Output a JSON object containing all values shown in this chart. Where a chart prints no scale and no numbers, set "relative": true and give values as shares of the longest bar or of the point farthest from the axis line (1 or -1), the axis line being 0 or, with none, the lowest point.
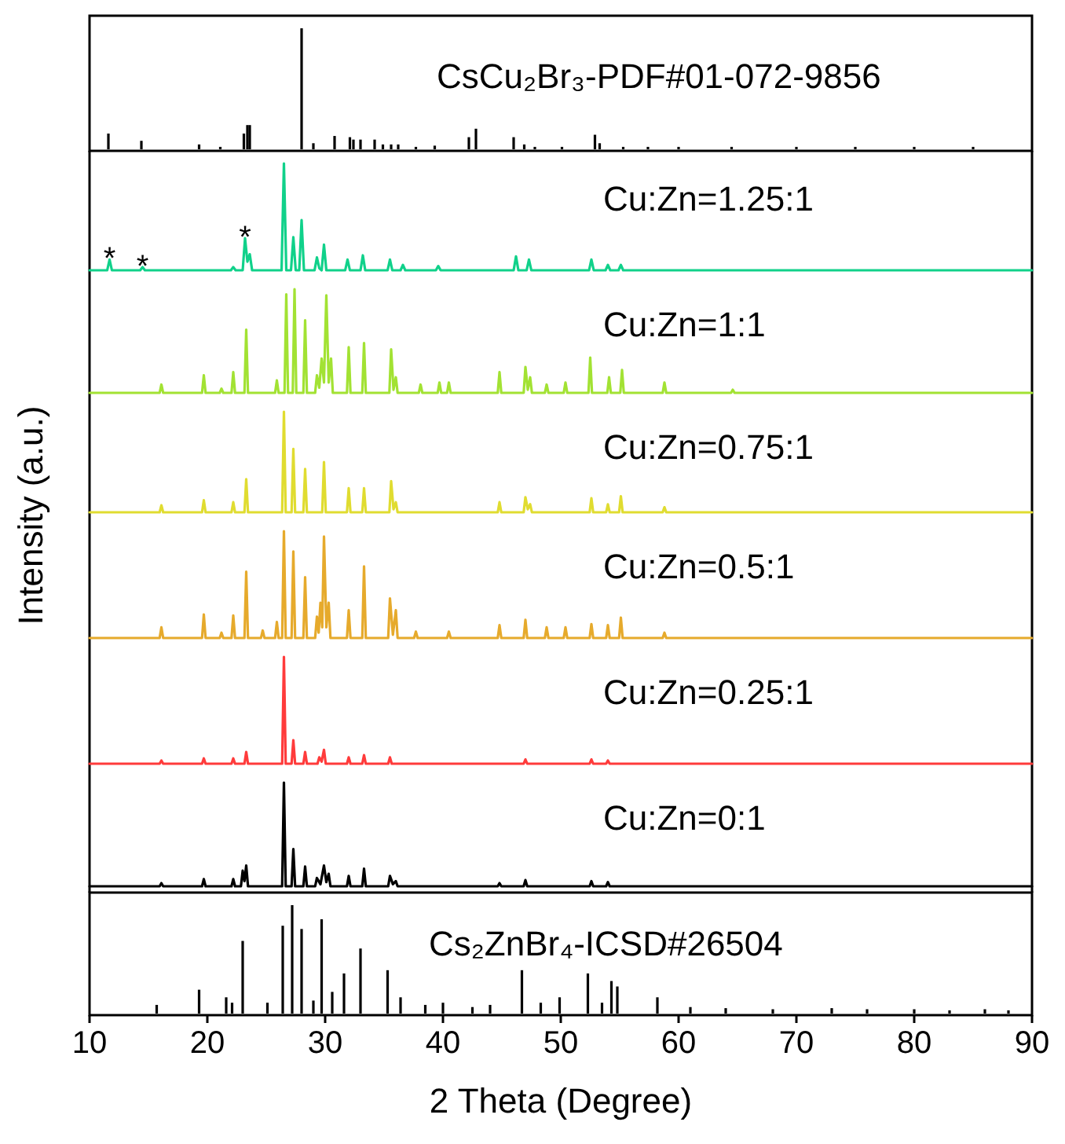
{
  "chart_data": [
    {
      "type": "bar",
      "relative": true,
      "xlim": [
        10,
        90
      ],
      "tick_labels": false,
      "series": [
        {
          "name": "CsCu₂Br₃-PDF#01-072-9856",
          "color": "#000000",
          "x": [
            11.6,
            14.4,
            19.3,
            21.1,
            23.1,
            23.4,
            23.6,
            28.0,
            29.0,
            30.8,
            32.1,
            32.4,
            33.0,
            34.2,
            34.9,
            35.6,
            36.2,
            37.7,
            39.3,
            42.2,
            42.8,
            46.0,
            46.9,
            47.8,
            50.1,
            52.9,
            53.3,
            55.3,
            57.4,
            60.0,
            64.5,
            70.0,
            75.0,
            80.0,
            85.0
          ],
          "values": [
            0.13,
            0.07,
            0.04,
            0.02,
            0.13,
            0.2,
            0.2,
            1,
            0.05,
            0.11,
            0.1,
            0.08,
            0.08,
            0.08,
            0.04,
            0.04,
            0.04,
            0.02,
            0.03,
            0.1,
            0.17,
            0.1,
            0.04,
            0.02,
            0.02,
            0.12,
            0.05,
            0.02,
            0.02,
            0.02,
            0.02,
            0.02,
            0.02,
            0.02,
            0.02
          ]
        }
      ]
    },
    {
      "type": "line",
      "relative": true,
      "xlim": [
        10,
        90
      ],
      "tick_labels": false,
      "annotations": [
        {
          "text": "*",
          "x": 11.7,
          "y": 0.1
        },
        {
          "text": "*",
          "x": 14.5,
          "y": 0.03
        },
        {
          "text": "*",
          "x": 23.2,
          "y": 0.3
        }
      ],
      "series": [
        {
          "name": "Cu:Zn=1.25:1",
          "color": "#10d18a",
          "x": [
            10,
            11.5,
            11.7,
            11.9,
            14.3,
            14.5,
            14.7,
            22.0,
            22.2,
            22.4,
            23.0,
            23.2,
            23.4,
            23.6,
            23.8,
            26.3,
            26.5,
            26.7,
            27.1,
            27.3,
            27.5,
            27.8,
            28.0,
            28.2,
            29.1,
            29.3,
            29.5,
            29.7,
            29.9,
            30.1,
            31.7,
            31.9,
            32.1,
            33.0,
            33.2,
            33.4,
            35.3,
            35.5,
            35.7,
            36.4,
            36.6,
            36.8,
            39.4,
            39.6,
            39.8,
            46.0,
            46.2,
            46.4,
            47.1,
            47.3,
            47.5,
            52.4,
            52.6,
            52.8,
            53.8,
            54.0,
            54.2,
            54.9,
            55.1,
            55.3,
            90
          ],
          "values": [
            0,
            0,
            0.1,
            0,
            0,
            0.03,
            0,
            0,
            0.03,
            0,
            0,
            0.3,
            0.08,
            0.15,
            0,
            0,
            1,
            0,
            0,
            0.31,
            0,
            0,
            0.47,
            0,
            0,
            0.12,
            0.02,
            0,
            0.24,
            0,
            0,
            0.1,
            0,
            0,
            0.14,
            0,
            0,
            0.1,
            0,
            0,
            0.05,
            0,
            0,
            0.04,
            0,
            0,
            0.13,
            0,
            0,
            0.1,
            0,
            0,
            0.1,
            0,
            0,
            0.05,
            0,
            0,
            0.05,
            0,
            0
          ]
        }
      ]
    },
    {
      "type": "line",
      "relative": true,
      "xlim": [
        10,
        90
      ],
      "tick_labels": false,
      "series": [
        {
          "name": "Cu:Zn=1:1",
          "color": "#a2e233",
          "x": [
            10,
            15.95,
            16.1,
            16.25,
            19.55,
            19.7,
            19.85,
            21.05,
            21.2,
            21.35,
            22.05,
            22.2,
            22.35,
            23.15,
            23.3,
            23.45,
            25.75,
            25.9,
            26.05,
            26.55,
            26.7,
            26.85,
            27.25,
            27.4,
            27.55,
            28.15,
            28.3,
            28.45,
            29.15,
            29.3,
            29.5,
            29.7,
            29.9,
            30.1,
            30.3,
            30.5,
            30.65,
            31.85,
            32.0,
            32.15,
            33.15,
            33.3,
            33.45,
            35.45,
            35.6,
            35.8,
            36.0,
            36.15,
            37.95,
            38.1,
            38.25,
            39.55,
            39.7,
            39.85,
            40.35,
            40.5,
            40.65,
            44.65,
            44.8,
            44.95,
            46.85,
            47.0,
            47.2,
            47.4,
            47.55,
            48.65,
            48.8,
            48.95,
            50.25,
            50.4,
            50.55,
            52.35,
            52.5,
            52.65,
            53.95,
            54.1,
            54.25,
            55.05,
            55.2,
            55.35,
            58.65,
            58.8,
            58.95,
            64.45,
            64.6,
            64.75,
            90
          ],
          "values": [
            0,
            0,
            0.08,
            0,
            0,
            0.17,
            0,
            0,
            0.04,
            0,
            0,
            0.2,
            0,
            0,
            0.61,
            0,
            0,
            0.12,
            0,
            0,
            0.95,
            0,
            0,
            1,
            0,
            0,
            0.7,
            0,
            0,
            0.17,
            0.05,
            0.33,
            0.1,
            0.94,
            0.1,
            0.33,
            0,
            0,
            0.44,
            0,
            0,
            0.48,
            0,
            0,
            0.42,
            0.03,
            0.15,
            0,
            0,
            0.08,
            0,
            0,
            0.1,
            0,
            0,
            0.1,
            0,
            0,
            0.2,
            0,
            0,
            0.25,
            0.03,
            0.15,
            0,
            0,
            0.08,
            0,
            0,
            0.1,
            0,
            0,
            0.34,
            0,
            0,
            0.15,
            0,
            0,
            0.22,
            0,
            0,
            0.1,
            0,
            0,
            0.03,
            0,
            0
          ]
        }
      ]
    },
    {
      "type": "line",
      "relative": true,
      "xlim": [
        10,
        90
      ],
      "tick_labels": false,
      "series": [
        {
          "name": "Cu:Zn=0.75:1",
          "color": "#e0dc30",
          "x": [
            10,
            15.95,
            16.1,
            16.25,
            19.55,
            19.7,
            19.85,
            22.05,
            22.2,
            22.35,
            23.15,
            23.3,
            23.45,
            26.35,
            26.5,
            26.65,
            27.15,
            27.3,
            27.45,
            28.15,
            28.3,
            28.45,
            29.75,
            29.9,
            30.05,
            31.85,
            32.0,
            32.15,
            33.15,
            33.3,
            33.45,
            35.45,
            35.6,
            35.8,
            36.0,
            36.15,
            44.65,
            44.8,
            44.95,
            46.85,
            47.0,
            47.2,
            47.4,
            47.55,
            52.45,
            52.6,
            52.75,
            53.85,
            54.0,
            54.15,
            54.95,
            55.1,
            55.25,
            58.65,
            58.8,
            58.95,
            90
          ],
          "values": [
            0,
            0,
            0.07,
            0,
            0,
            0.12,
            0,
            0,
            0.1,
            0,
            0,
            0.33,
            0,
            0,
            1,
            0,
            0,
            0.63,
            0,
            0,
            0.43,
            0,
            0,
            0.5,
            0,
            0,
            0.24,
            0,
            0,
            0.24,
            0,
            0,
            0.31,
            0.03,
            0.1,
            0,
            0,
            0.1,
            0,
            0,
            0.15,
            0.03,
            0.08,
            0,
            0,
            0.14,
            0,
            0,
            0.08,
            0,
            0,
            0.16,
            0,
            0,
            0.05,
            0,
            0
          ]
        }
      ]
    },
    {
      "type": "line",
      "relative": true,
      "xlim": [
        10,
        90
      ],
      "tick_labels": false,
      "ylabel": "Intensity (a.u.)",
      "series": [
        {
          "name": "Cu:Zn=0.5:1",
          "color": "#e6aa2c",
          "x": [
            10,
            15.95,
            16.1,
            16.25,
            19.55,
            19.7,
            19.85,
            21.05,
            21.2,
            21.35,
            22.05,
            22.2,
            22.35,
            23.15,
            23.3,
            23.45,
            24.55,
            24.7,
            24.85,
            25.75,
            25.9,
            26.05,
            26.35,
            26.5,
            26.65,
            27.15,
            27.3,
            27.45,
            28.15,
            28.3,
            28.45,
            29.15,
            29.3,
            29.45,
            29.6,
            29.75,
            29.9,
            30.1,
            30.3,
            30.45,
            31.85,
            32.0,
            32.15,
            33.15,
            33.3,
            33.45,
            35.35,
            35.5,
            35.75,
            36.0,
            36.15,
            37.55,
            37.7,
            37.85,
            40.35,
            40.5,
            40.65,
            44.65,
            44.8,
            44.95,
            46.85,
            47.0,
            47.15,
            48.65,
            48.8,
            48.95,
            50.25,
            50.4,
            50.55,
            52.45,
            52.6,
            52.75,
            53.85,
            54.0,
            54.15,
            54.95,
            55.1,
            55.25,
            58.65,
            58.8,
            58.95,
            90
          ],
          "values": [
            0,
            0,
            0.1,
            0,
            0,
            0.22,
            0,
            0,
            0.05,
            0,
            0,
            0.21,
            0,
            0,
            0.62,
            0,
            0,
            0.07,
            0,
            0,
            0.15,
            0,
            0,
            1,
            0,
            0,
            0.81,
            0,
            0,
            0.57,
            0,
            0,
            0.2,
            0.05,
            0.33,
            0.1,
            0.95,
            0.1,
            0.33,
            0,
            0,
            0.26,
            0,
            0,
            0.67,
            0,
            0,
            0.37,
            0.03,
            0.26,
            0,
            0,
            0.06,
            0,
            0,
            0.06,
            0,
            0,
            0.12,
            0,
            0,
            0.17,
            0,
            0,
            0.1,
            0,
            0,
            0.1,
            0,
            0,
            0.13,
            0,
            0,
            0.12,
            0,
            0,
            0.19,
            0,
            0,
            0.05,
            0,
            0
          ]
        }
      ]
    },
    {
      "type": "line",
      "relative": true,
      "xlim": [
        10,
        90
      ],
      "tick_labels": false,
      "series": [
        {
          "name": "Cu:Zn=0.25:1",
          "color": "#ff3b3b",
          "x": [
            10,
            15.95,
            16.1,
            16.25,
            19.55,
            19.7,
            19.85,
            22.05,
            22.2,
            22.35,
            23.15,
            23.3,
            23.45,
            26.35,
            26.5,
            26.65,
            27.15,
            27.3,
            27.45,
            28.15,
            28.3,
            28.45,
            29.35,
            29.5,
            29.7,
            29.9,
            30.05,
            31.85,
            32.0,
            32.15,
            33.15,
            33.3,
            33.45,
            35.35,
            35.5,
            35.65,
            46.85,
            47.0,
            47.15,
            52.45,
            52.6,
            52.75,
            53.85,
            54.0,
            54.15,
            90
          ],
          "values": [
            0,
            0,
            0.03,
            0,
            0,
            0.05,
            0,
            0,
            0.05,
            0,
            0,
            0.11,
            0,
            0,
            1,
            0,
            0,
            0.22,
            0,
            0,
            0.11,
            0,
            0,
            0.06,
            0.02,
            0.13,
            0,
            0,
            0.06,
            0,
            0,
            0.08,
            0,
            0,
            0.06,
            0,
            0,
            0.04,
            0,
            0,
            0.04,
            0,
            0,
            0.03,
            0,
            0
          ]
        }
      ]
    },
    {
      "type": "line",
      "relative": true,
      "xlim": [
        10,
        90
      ],
      "tick_labels": false,
      "series": [
        {
          "name": "Cu:Zn=0:1",
          "color": "#000000",
          "x": [
            10,
            15.95,
            16.1,
            16.25,
            19.55,
            19.7,
            19.85,
            22.05,
            22.2,
            22.35,
            22.85,
            23.0,
            23.15,
            23.3,
            23.45,
            26.35,
            26.5,
            26.65,
            27.15,
            27.3,
            27.45,
            28.15,
            28.3,
            28.45,
            29.15,
            29.3,
            29.6,
            29.9,
            30.1,
            30.3,
            30.45,
            31.85,
            32.0,
            32.15,
            33.15,
            33.3,
            33.45,
            35.35,
            35.5,
            35.75,
            36.0,
            36.15,
            44.65,
            44.8,
            44.95,
            46.85,
            47.0,
            47.15,
            52.45,
            52.6,
            52.75,
            53.85,
            54.0,
            54.15,
            90
          ],
          "values": [
            0,
            0,
            0.03,
            0,
            0,
            0.07,
            0,
            0,
            0.07,
            0,
            0,
            0.15,
            0.05,
            0.2,
            0,
            0,
            1,
            0,
            0,
            0.36,
            0,
            0,
            0.19,
            0,
            0,
            0.08,
            0.02,
            0.2,
            0.04,
            0.12,
            0,
            0,
            0.1,
            0,
            0,
            0.17,
            0,
            0,
            0.1,
            0.02,
            0.05,
            0,
            0,
            0.03,
            0,
            0,
            0.06,
            0,
            0,
            0.05,
            0,
            0,
            0.04,
            0,
            0
          ]
        }
      ]
    },
    {
      "type": "bar",
      "relative": true,
      "xlim": [
        10,
        90
      ],
      "xticks": [
        10,
        20,
        30,
        40,
        50,
        60,
        70,
        80,
        90
      ],
      "xlabel": "2 Theta (Degree)",
      "tick_labels": "x",
      "series": [
        {
          "name": "Cs₂ZnBr₄-ICSD#26504",
          "color": "#000000",
          "x": [
            15.7,
            19.3,
            21.6,
            22.1,
            23.0,
            25.1,
            26.4,
            27.2,
            28.0,
            29.0,
            29.7,
            30.6,
            31.6,
            33.0,
            35.3,
            36.4,
            38.5,
            40.0,
            42.5,
            44.0,
            46.7,
            48.3,
            49.9,
            52.3,
            53.5,
            54.3,
            54.8,
            58.2,
            61.0,
            64.0,
            68.0,
            73.0,
            76.0,
            80.0,
            83.0,
            86.0,
            88.0
          ],
          "values": [
            0.08,
            0.22,
            0.15,
            0.1,
            0.67,
            0.1,
            0.81,
            1,
            0.78,
            0.12,
            0.87,
            0.2,
            0.37,
            0.6,
            0.4,
            0.15,
            0.08,
            0.1,
            0.06,
            0.08,
            0.4,
            0.1,
            0.15,
            0.37,
            0.1,
            0.3,
            0.25,
            0.15,
            0.06,
            0.05,
            0.04,
            0.05,
            0.04,
            0.04,
            0.03,
            0.04,
            0.03
          ]
        }
      ]
    }
  ]
}
